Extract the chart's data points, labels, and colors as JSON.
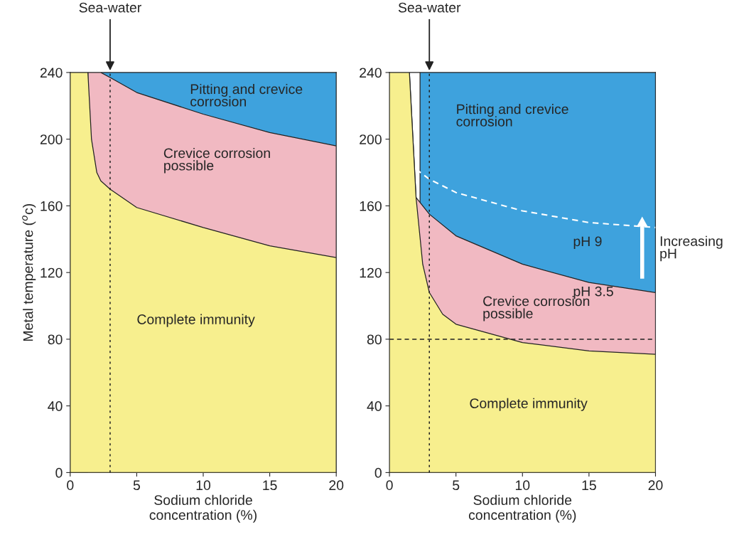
{
  "chart_data": [
    {
      "type": "area",
      "xlabel": "Sodium chloride\nconcentration (%)",
      "ylabel": "Metal temperature ($^{o}$c)",
      "xlim": [
        0,
        20
      ],
      "ylim": [
        0,
        240
      ],
      "xticks": [
        0,
        5,
        10,
        15,
        20
      ],
      "yticks": [
        0,
        40,
        80,
        120,
        160,
        200,
        240
      ],
      "series": [
        {
          "color": "#3ea2dd",
          "x": [
            2.3,
            20
          ],
          "values": [
            240,
            240
          ]
        },
        {
          "color": "#f1b9c2",
          "x": [
            1.33,
            2.3,
            3,
            5,
            10,
            15,
            20
          ],
          "values": [
            240,
            240,
            237,
            228,
            215,
            204,
            196
          ]
        },
        {
          "color": "#f7ef8e",
          "x": [
            0,
            1.33,
            1.6,
            2.0,
            2.3,
            3,
            5,
            10,
            15,
            20
          ],
          "values": [
            240,
            240,
            200,
            180,
            175,
            170,
            159,
            147,
            136,
            129
          ]
        }
      ],
      "ref_lines": [
        {
          "axis": "x",
          "value": 3,
          "label": "Sea-water",
          "color": "#222222",
          "line_style": "dotted"
        }
      ],
      "annotations": [
        "Pitting and crevice\ncorrosion",
        "Crevice corrosion\npossible",
        "Complete immunity"
      ]
    },
    {
      "type": "area",
      "xlabel": "Sodium chloride\nconcentration (%)",
      "xlim": [
        0,
        20
      ],
      "ylim": [
        0,
        240
      ],
      "xticks": [
        0,
        5,
        10,
        15,
        20
      ],
      "yticks": [
        0,
        40,
        80,
        120,
        160,
        200,
        240
      ],
      "series": [
        {
          "color": "#3ea2dd",
          "x": [
            2.3,
            20
          ],
          "values": [
            240,
            240
          ]
        },
        {
          "color": "#f1b9c2",
          "x": [
            1.5,
            1.7,
            2.0,
            3,
            5,
            10,
            15,
            20
          ],
          "values": [
            240,
            210,
            165,
            155,
            142,
            125,
            114,
            108
          ]
        },
        {
          "color": "#f7ef8e",
          "x": [
            0,
            1.5,
            1.7,
            2.0,
            2.5,
            3,
            4,
            5,
            10,
            15,
            20
          ],
          "values": [
            240,
            240,
            210,
            165,
            125,
            108,
            95,
            89,
            78,
            73,
            71
          ]
        },
        {
          "type": "line",
          "color": "#ffffff",
          "line_style": "dashed",
          "x": [
            2,
            3,
            5,
            10,
            15,
            20
          ],
          "values": [
            182,
            176,
            168,
            157,
            150,
            147
          ]
        }
      ],
      "ref_lines": [
        {
          "axis": "x",
          "value": 3,
          "label": "Sea-water",
          "color": "#222222",
          "line_style": "dotted"
        },
        {
          "axis": "y",
          "value": 80,
          "color": "#222222",
          "line_style": "dashed"
        }
      ],
      "annotations": [
        "Pitting and crevice\ncorrosion",
        "pH 9",
        "pH 3.5",
        "Crevice corrosion\npossible",
        "Complete immunity",
        "Increasing\npH"
      ]
    }
  ]
}
